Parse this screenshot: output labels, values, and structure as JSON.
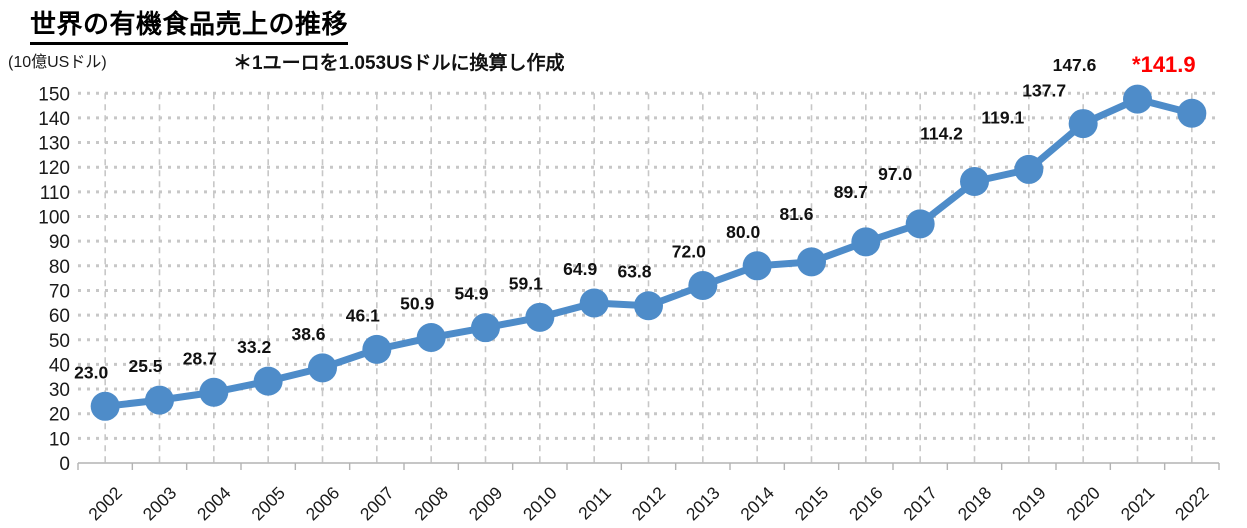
{
  "chart_data": {
    "type": "line",
    "title": "世界の有機食品売上の推移",
    "unit_label": "(10億USドル)",
    "note": "＊1ユーロを1.053USドルに換算し作成",
    "categories": [
      "2002",
      "2003",
      "2004",
      "2005",
      "2006",
      "2007",
      "2008",
      "2009",
      "2010",
      "2011",
      "2012",
      "2013",
      "2014",
      "2015",
      "2016",
      "2017",
      "2018",
      "2019",
      "2020",
      "2021",
      "2022"
    ],
    "values": [
      23.0,
      25.5,
      28.7,
      33.2,
      38.6,
      46.1,
      50.9,
      54.9,
      59.1,
      64.9,
      63.8,
      72.0,
      80.0,
      81.6,
      89.7,
      97.0,
      114.2,
      119.1,
      137.7,
      147.6,
      141.9
    ],
    "point_labels": [
      "23.0",
      "25.5",
      "28.7",
      "33.2",
      "38.6",
      "46.1",
      "50.9",
      "54.9",
      "59.1",
      "64.9",
      "63.8",
      "72.0",
      "80.0",
      "81.6",
      "89.7",
      "97.0",
      "114.2",
      "119.1",
      "137.7",
      "147.6",
      "*141.9"
    ],
    "highlight_index": 20,
    "ylim": [
      0,
      150
    ],
    "ytick_step": 10,
    "grid": "dashed horizontal and vertical gridlines",
    "legend": "none",
    "line_color": "#4E8CC9",
    "grid_color": "#c7c7c7",
    "axis_color": "#b3b3b3",
    "label_color": "#111111",
    "highlight_color": "#ff0000"
  }
}
